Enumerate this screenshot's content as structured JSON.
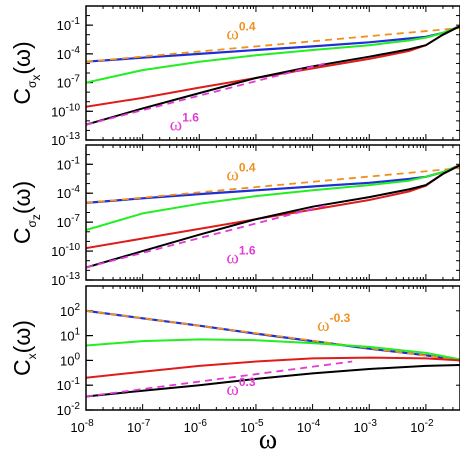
{
  "colors": {
    "blue": "#1f2fd6",
    "orange": "#f0901e",
    "green": "#22ee22",
    "red": "#e01b1b",
    "black": "#000000",
    "magenta": "#e23ad6"
  },
  "xlabel": "ω",
  "x_ticks": [
    {
      "v": -8,
      "base": "10",
      "exp": "-8"
    },
    {
      "v": -7,
      "base": "10",
      "exp": "-7"
    },
    {
      "v": -6,
      "base": "10",
      "exp": "-6"
    },
    {
      "v": -5,
      "base": "10",
      "exp": "-5"
    },
    {
      "v": -4,
      "base": "10",
      "exp": "-4"
    },
    {
      "v": -3,
      "base": "10",
      "exp": "-3"
    },
    {
      "v": -2,
      "base": "10",
      "exp": "-2"
    }
  ],
  "chart_data": [
    {
      "type": "line",
      "ylabel": {
        "main": "C",
        "sub": "σ",
        "subsub": "x",
        "tail": "(ω)"
      },
      "xscale": "log",
      "yscale": "log",
      "xlim": [
        1e-08,
        0.04
      ],
      "ylim": [
        1e-13,
        10
      ],
      "y_ticks": [
        {
          "v": -1,
          "base": "10",
          "exp": "-1"
        },
        {
          "v": -4,
          "base": "10",
          "exp": "-4"
        },
        {
          "v": -7,
          "base": "10",
          "exp": "-7"
        },
        {
          "v": -10,
          "base": "10",
          "exp": "-10"
        },
        {
          "v": -13,
          "base": "10",
          "exp": "-13"
        }
      ],
      "series": [
        {
          "color": "blue",
          "width": 2.2,
          "x": [
            1e-08,
            1e-07,
            1e-06,
            1e-05,
            0.0001,
            0.001,
            0.005,
            0.01,
            0.02,
            0.04
          ],
          "y": [
            1.5e-05,
            4e-05,
            0.0001,
            0.00025,
            0.0006,
            0.0016,
            0.004,
            0.006,
            0.015,
            0.08
          ]
        },
        {
          "color": "orange",
          "width": 1.8,
          "dash": "7,5",
          "x": [
            1e-08,
            0.04
          ],
          "y": [
            1.5e-05,
            0.05
          ]
        },
        {
          "color": "green",
          "width": 2,
          "x": [
            1e-08,
            1e-07,
            1e-06,
            1e-05,
            0.0001,
            0.001,
            0.005,
            0.01,
            0.02,
            0.04
          ],
          "y": [
            1e-07,
            2e-06,
            1.5e-05,
            7e-05,
            0.00025,
            0.0008,
            0.0025,
            0.005,
            0.015,
            0.08
          ]
        },
        {
          "color": "red",
          "width": 2,
          "x": [
            1e-08,
            1e-07,
            1e-06,
            1e-05,
            0.0001,
            0.001,
            0.005,
            0.01,
            0.02,
            0.04
          ],
          "y": [
            3e-10,
            2.5e-09,
            3e-08,
            3e-07,
            3e-06,
            3e-05,
            0.0002,
            0.0008,
            0.01,
            0.08
          ]
        },
        {
          "color": "black",
          "width": 2,
          "x": [
            1e-08,
            1e-07,
            1e-06,
            1e-05,
            0.0001,
            0.001,
            0.005,
            0.01,
            0.02,
            0.04
          ],
          "y": [
            4e-12,
            2e-10,
            8e-09,
            3e-07,
            5e-06,
            5e-05,
            0.0003,
            0.0008,
            0.01,
            0.08
          ]
        },
        {
          "color": "magenta",
          "width": 1.8,
          "dash": "7,5",
          "x": [
            1e-08,
            0.0002
          ],
          "y": [
            4e-12,
            1.3e-05
          ]
        }
      ],
      "annotations": [
        {
          "base": "ω",
          "exp": "0.4",
          "color": "orange",
          "x": 3e-06,
          "y": 0.003
        },
        {
          "base": "ω",
          "exp": "1.6",
          "color": "magenta",
          "x": 3e-07,
          "y": 1e-12
        }
      ]
    },
    {
      "type": "line",
      "ylabel": {
        "main": "C",
        "sub": "σ",
        "subsub": "z",
        "tail": "(ω)"
      },
      "xscale": "log",
      "yscale": "log",
      "xlim": [
        1e-08,
        0.04
      ],
      "ylim": [
        1e-13,
        10
      ],
      "y_ticks": [
        {
          "v": -1,
          "base": "10",
          "exp": "-1"
        },
        {
          "v": -4,
          "base": "10",
          "exp": "-4"
        },
        {
          "v": -7,
          "base": "10",
          "exp": "-7"
        },
        {
          "v": -10,
          "base": "10",
          "exp": "-10"
        },
        {
          "v": -13,
          "base": "10",
          "exp": "-13"
        }
      ],
      "series": [
        {
          "color": "blue",
          "width": 2.2,
          "x": [
            1e-08,
            1e-07,
            1e-06,
            1e-05,
            0.0001,
            0.001,
            0.005,
            0.01,
            0.02,
            0.04
          ],
          "y": [
            1e-05,
            3e-05,
            8e-05,
            0.0002,
            0.0005,
            0.0012,
            0.003,
            0.005,
            0.015,
            0.08
          ]
        },
        {
          "color": "orange",
          "width": 1.8,
          "dash": "7,5",
          "x": [
            1e-08,
            0.04
          ],
          "y": [
            1e-05,
            0.04
          ]
        },
        {
          "color": "green",
          "width": 2,
          "x": [
            1e-08,
            1e-07,
            1e-06,
            1e-05,
            0.0001,
            0.001,
            0.005,
            0.01,
            0.02,
            0.04
          ],
          "y": [
            1.5e-08,
            8e-07,
            8e-06,
            5e-05,
            0.0002,
            0.0007,
            0.002,
            0.005,
            0.015,
            0.08
          ]
        },
        {
          "color": "red",
          "width": 2,
          "x": [
            1e-08,
            1e-07,
            1e-06,
            1e-05,
            0.0001,
            0.001,
            0.005,
            0.01,
            0.02,
            0.04
          ],
          "y": [
            2e-10,
            2e-09,
            2e-08,
            2e-07,
            2e-06,
            2e-05,
            0.00015,
            0.0006,
            0.01,
            0.08
          ]
        },
        {
          "color": "black",
          "width": 2,
          "x": [
            1e-08,
            1e-07,
            1e-06,
            1e-05,
            0.0001,
            0.001,
            0.005,
            0.01,
            0.02,
            0.04
          ],
          "y": [
            2e-12,
            1e-10,
            5e-09,
            2e-07,
            4e-06,
            4e-05,
            0.00025,
            0.0007,
            0.01,
            0.08
          ]
        },
        {
          "color": "magenta",
          "width": 1.8,
          "dash": "7,5",
          "x": [
            1e-08,
            0.0002
          ],
          "y": [
            2e-12,
            7e-06
          ]
        }
      ],
      "annotations": [
        {
          "base": "ω",
          "exp": "0.4",
          "color": "orange",
          "x": 3e-06,
          "y": 0.002
        },
        {
          "base": "ω",
          "exp": "1.6",
          "color": "magenta",
          "x": 3e-06,
          "y": 5e-12
        }
      ]
    },
    {
      "type": "line",
      "ylabel": {
        "main": "C",
        "sub": "x",
        "subsub": "",
        "tail": "(ω)"
      },
      "xscale": "log",
      "yscale": "log",
      "xlim": [
        1e-08,
        0.04
      ],
      "ylim": [
        0.01,
        1000
      ],
      "y_ticks": [
        {
          "v": 2,
          "base": "10",
          "exp": "2"
        },
        {
          "v": 1,
          "base": "10",
          "exp": "1"
        },
        {
          "v": 0,
          "base": "10",
          "exp": "0"
        },
        {
          "v": -1,
          "base": "10",
          "exp": "-1"
        },
        {
          "v": -2,
          "base": "10",
          "exp": "-2"
        }
      ],
      "series": [
        {
          "color": "blue",
          "width": 2.2,
          "x": [
            1e-08,
            1e-07,
            1e-06,
            1e-05,
            0.0001,
            0.001,
            0.01,
            0.04
          ],
          "y": [
            100,
            50,
            25,
            12,
            6,
            3,
            1.6,
            1.0
          ]
        },
        {
          "color": "orange",
          "width": 1.8,
          "dash": "7,5",
          "x": [
            1e-08,
            0.04
          ],
          "y": [
            100,
            1.03
          ]
        },
        {
          "color": "green",
          "width": 2,
          "x": [
            1e-08,
            1e-07,
            1e-06,
            1e-05,
            0.0001,
            0.001,
            0.01,
            0.04
          ],
          "y": [
            4,
            6,
            7,
            6.5,
            5,
            3.5,
            2,
            1.1
          ]
        },
        {
          "color": "red",
          "width": 2,
          "x": [
            1e-08,
            1e-07,
            1e-06,
            1e-05,
            0.0001,
            0.001,
            0.01,
            0.04
          ],
          "y": [
            0.2,
            0.35,
            0.6,
            0.9,
            1.2,
            1.3,
            1.2,
            1.0
          ]
        },
        {
          "color": "black",
          "width": 2,
          "x": [
            1e-08,
            1e-07,
            1e-06,
            1e-05,
            0.0001,
            0.001,
            0.01,
            0.04
          ],
          "y": [
            0.035,
            0.06,
            0.1,
            0.18,
            0.3,
            0.45,
            0.6,
            0.65
          ]
        },
        {
          "color": "magenta",
          "width": 1.8,
          "dash": "7,5",
          "x": [
            1e-08,
            0.0005
          ],
          "y": [
            0.035,
            0.9
          ]
        }
      ],
      "annotations": [
        {
          "base": "ω",
          "exp": "-0.3",
          "color": "orange",
          "x": 0.00012,
          "y": 15
        },
        {
          "base": "ω",
          "exp": "0.3",
          "color": "magenta",
          "x": 3e-06,
          "y": 0.04
        }
      ]
    }
  ]
}
